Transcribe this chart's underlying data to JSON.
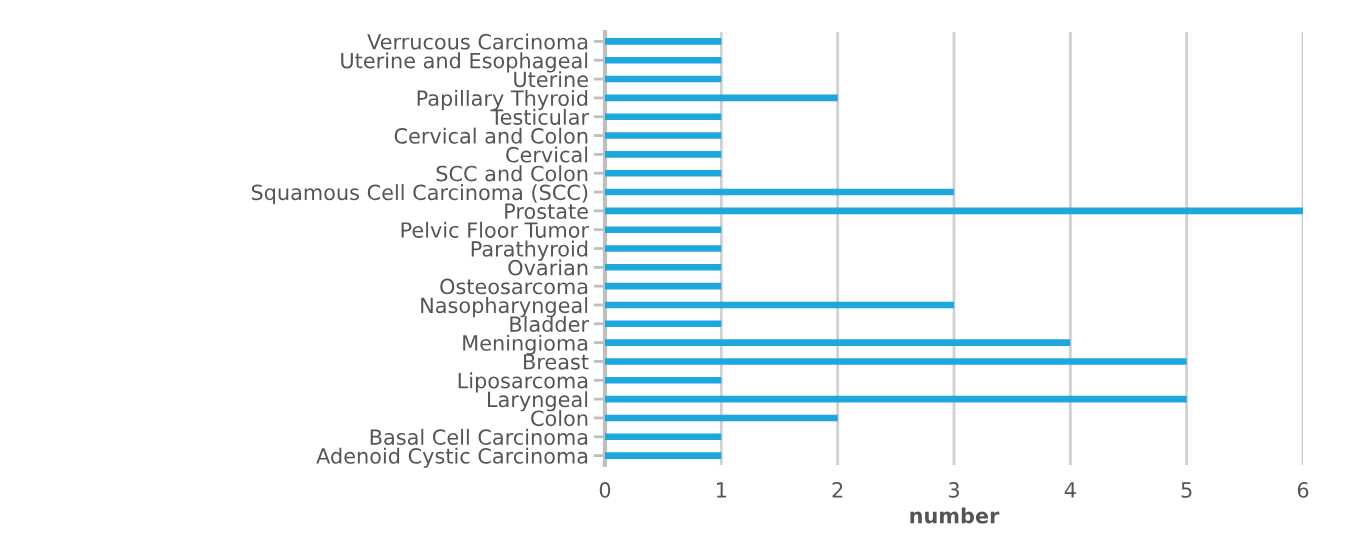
{
  "chart_data": {
    "type": "bar",
    "orientation": "horizontal",
    "xlabel": "number",
    "categories": [
      "Verrucous Carcinoma",
      "Uterine and Esophageal",
      "Uterine",
      "Papillary Thyroid",
      "Testicular",
      "Cervical and Colon",
      "Cervical",
      "SCC and Colon",
      "Squamous Cell Carcinoma (SCC)",
      "Prostate",
      "Pelvic Floor Tumor",
      "Parathyroid",
      "Ovarian",
      "Osteosarcoma",
      "Nasopharyngeal",
      "Bladder",
      "Meningioma",
      "Breast",
      "Liposarcoma",
      "Laryngeal",
      "Colon",
      "Basal Cell Carcinoma",
      "Adenoid Cystic Carcinoma"
    ],
    "values": [
      1,
      1,
      1,
      2,
      1,
      1,
      1,
      1,
      3,
      6,
      1,
      1,
      1,
      1,
      3,
      1,
      4,
      5,
      1,
      5,
      2,
      1,
      1
    ],
    "color": "#1ea7dc",
    "xlim": [
      0,
      6
    ],
    "xticks": [
      0,
      1,
      2,
      3,
      4,
      5,
      6
    ],
    "grid": "x"
  }
}
